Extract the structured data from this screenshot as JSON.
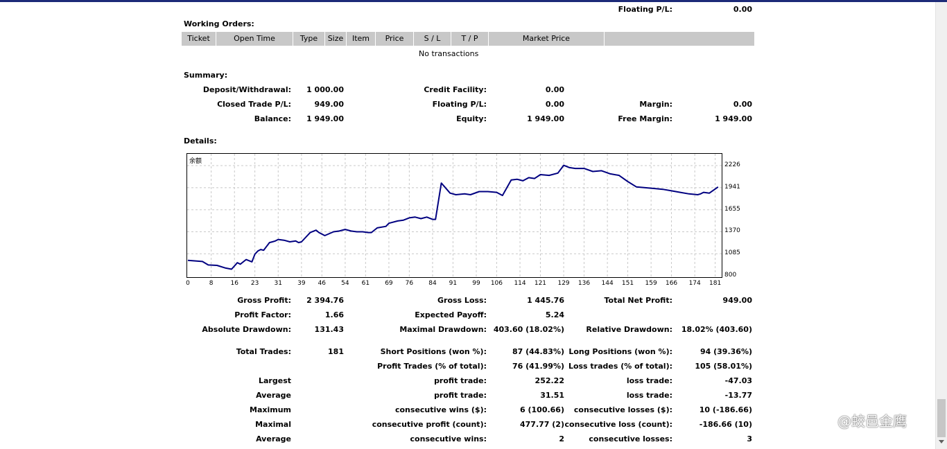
{
  "top": {
    "floating_label": "Floating P/L:",
    "floating_value": "0.00"
  },
  "working_orders": {
    "title": "Working Orders:",
    "columns": [
      "Ticket",
      "Open Time",
      "Type",
      "Size",
      "Item",
      "Price",
      "S / L",
      "T / P",
      "Market Price",
      ""
    ],
    "empty_text": "No transactions"
  },
  "summary": {
    "title": "Summary:",
    "deposit_label": "Deposit/Withdrawal:",
    "deposit_value": "1 000.00",
    "credit_label": "Credit Facility:",
    "credit_value": "0.00",
    "closed_label": "Closed Trade P/L:",
    "closed_value": "949.00",
    "floating_label": "Floating P/L:",
    "floating_value": "0.00",
    "margin_label": "Margin:",
    "margin_value": "0.00",
    "balance_label": "Balance:",
    "balance_value": "1 949.00",
    "equity_label": "Equity:",
    "equity_value": "1 949.00",
    "free_margin_label": "Free Margin:",
    "free_margin_value": "1 949.00"
  },
  "details": {
    "title": "Details:"
  },
  "chart_data": {
    "type": "line",
    "series": [
      {
        "name": "余额",
        "color": "#000080"
      }
    ],
    "ylim": [
      800,
      2370
    ],
    "y_ticks": [
      "2226",
      "1941",
      "1655",
      "1370",
      "1085",
      "800"
    ],
    "x_ticks": [
      "0",
      "8",
      "16",
      "23",
      "31",
      "39",
      "46",
      "54",
      "61",
      "69",
      "76",
      "84",
      "91",
      "99",
      "106",
      "114",
      "121",
      "129",
      "136",
      "144",
      "151",
      "159",
      "166",
      "174",
      "181"
    ],
    "xlim": [
      0,
      183
    ],
    "grid": true,
    "x": [
      0,
      5,
      7,
      10,
      13,
      15,
      17,
      18,
      20,
      22,
      23,
      24,
      25,
      26,
      28,
      29,
      30,
      31,
      33,
      35,
      37,
      38,
      39,
      42,
      44,
      45,
      47,
      50,
      52,
      54,
      56,
      58,
      60,
      62,
      63,
      65,
      68,
      69,
      72,
      74,
      76,
      78,
      80,
      82,
      84,
      85,
      87,
      90,
      92,
      95,
      97,
      100,
      103,
      106,
      108,
      111,
      113,
      115,
      117,
      119,
      121,
      124,
      127,
      129,
      131,
      133,
      136,
      139,
      142,
      145,
      148,
      151,
      154,
      157,
      160,
      163,
      166,
      169,
      172,
      175,
      176,
      177,
      179,
      182
    ],
    "y": [
      1000,
      985,
      940,
      935,
      900,
      885,
      970,
      950,
      1010,
      980,
      1080,
      1120,
      1140,
      1130,
      1230,
      1240,
      1250,
      1270,
      1260,
      1240,
      1250,
      1230,
      1240,
      1360,
      1390,
      1360,
      1320,
      1370,
      1380,
      1400,
      1380,
      1370,
      1370,
      1360,
      1360,
      1420,
      1440,
      1480,
      1510,
      1520,
      1550,
      1560,
      1540,
      1560,
      1530,
      1530,
      2000,
      1870,
      1850,
      1860,
      1850,
      1890,
      1890,
      1880,
      1840,
      2040,
      2050,
      2030,
      2070,
      2060,
      2110,
      2100,
      2130,
      2230,
      2200,
      2190,
      2190,
      2150,
      2160,
      2120,
      2100,
      2020,
      1950,
      1940,
      1930,
      1920,
      1900,
      1880,
      1860,
      1850,
      1860,
      1880,
      1870,
      1950
    ]
  },
  "stats": {
    "gross_profit_label": "Gross Profit:",
    "gross_profit_value": "2 394.76",
    "gross_loss_label": "Gross Loss:",
    "gross_loss_value": "1 445.76",
    "total_net_label": "Total Net Profit:",
    "total_net_value": "949.00",
    "profit_factor_label": "Profit Factor:",
    "profit_factor_value": "1.66",
    "expected_payoff_label": "Expected Payoff:",
    "expected_payoff_value": "5.24",
    "abs_dd_label": "Absolute Drawdown:",
    "abs_dd_value": "131.43",
    "max_dd_label": "Maximal Drawdown:",
    "max_dd_value": "403.60 (18.02%)",
    "rel_dd_label": "Relative Drawdown:",
    "rel_dd_value": "18.02% (403.60)",
    "total_trades_label": "Total Trades:",
    "total_trades_value": "181",
    "short_label": "Short Positions (won %):",
    "short_value": "87 (44.83%)",
    "long_label": "Long Positions (won %):",
    "long_value": "94 (39.36%)",
    "profit_trades_label": "Profit Trades (% of total):",
    "profit_trades_value": "76 (41.99%)",
    "loss_trades_label": "Loss trades (% of total):",
    "loss_trades_value": "105 (58.01%)",
    "largest_label": "Largest",
    "largest_profit_label": "profit trade:",
    "largest_profit_value": "252.22",
    "largest_loss_label": "loss trade:",
    "largest_loss_value": "-47.03",
    "average_label": "Average",
    "average_profit_label": "profit trade:",
    "average_profit_value": "31.51",
    "average_loss_label": "loss trade:",
    "average_loss_value": "-13.77",
    "maximum_label": "Maximum",
    "max_cons_wins_label": "consecutive wins ($):",
    "max_cons_wins_value": "6 (100.66)",
    "max_cons_losses_label": "consecutive losses ($):",
    "max_cons_losses_value": "10 (-186.66)",
    "maximal_label": "Maximal",
    "maximal_cons_profit_label": "consecutive profit (count):",
    "maximal_cons_profit_value": "477.77 (2)",
    "maximal_cons_loss_label": "consecutive loss (count):",
    "maximal_cons_loss_value": "-186.66 (10)",
    "average2_label": "Average",
    "avg_cons_wins_label": "consecutive wins:",
    "avg_cons_wins_value": "2",
    "avg_cons_losses_label": "consecutive losses:",
    "avg_cons_losses_value": "3"
  },
  "watermark": "@蛟邑金鹰"
}
